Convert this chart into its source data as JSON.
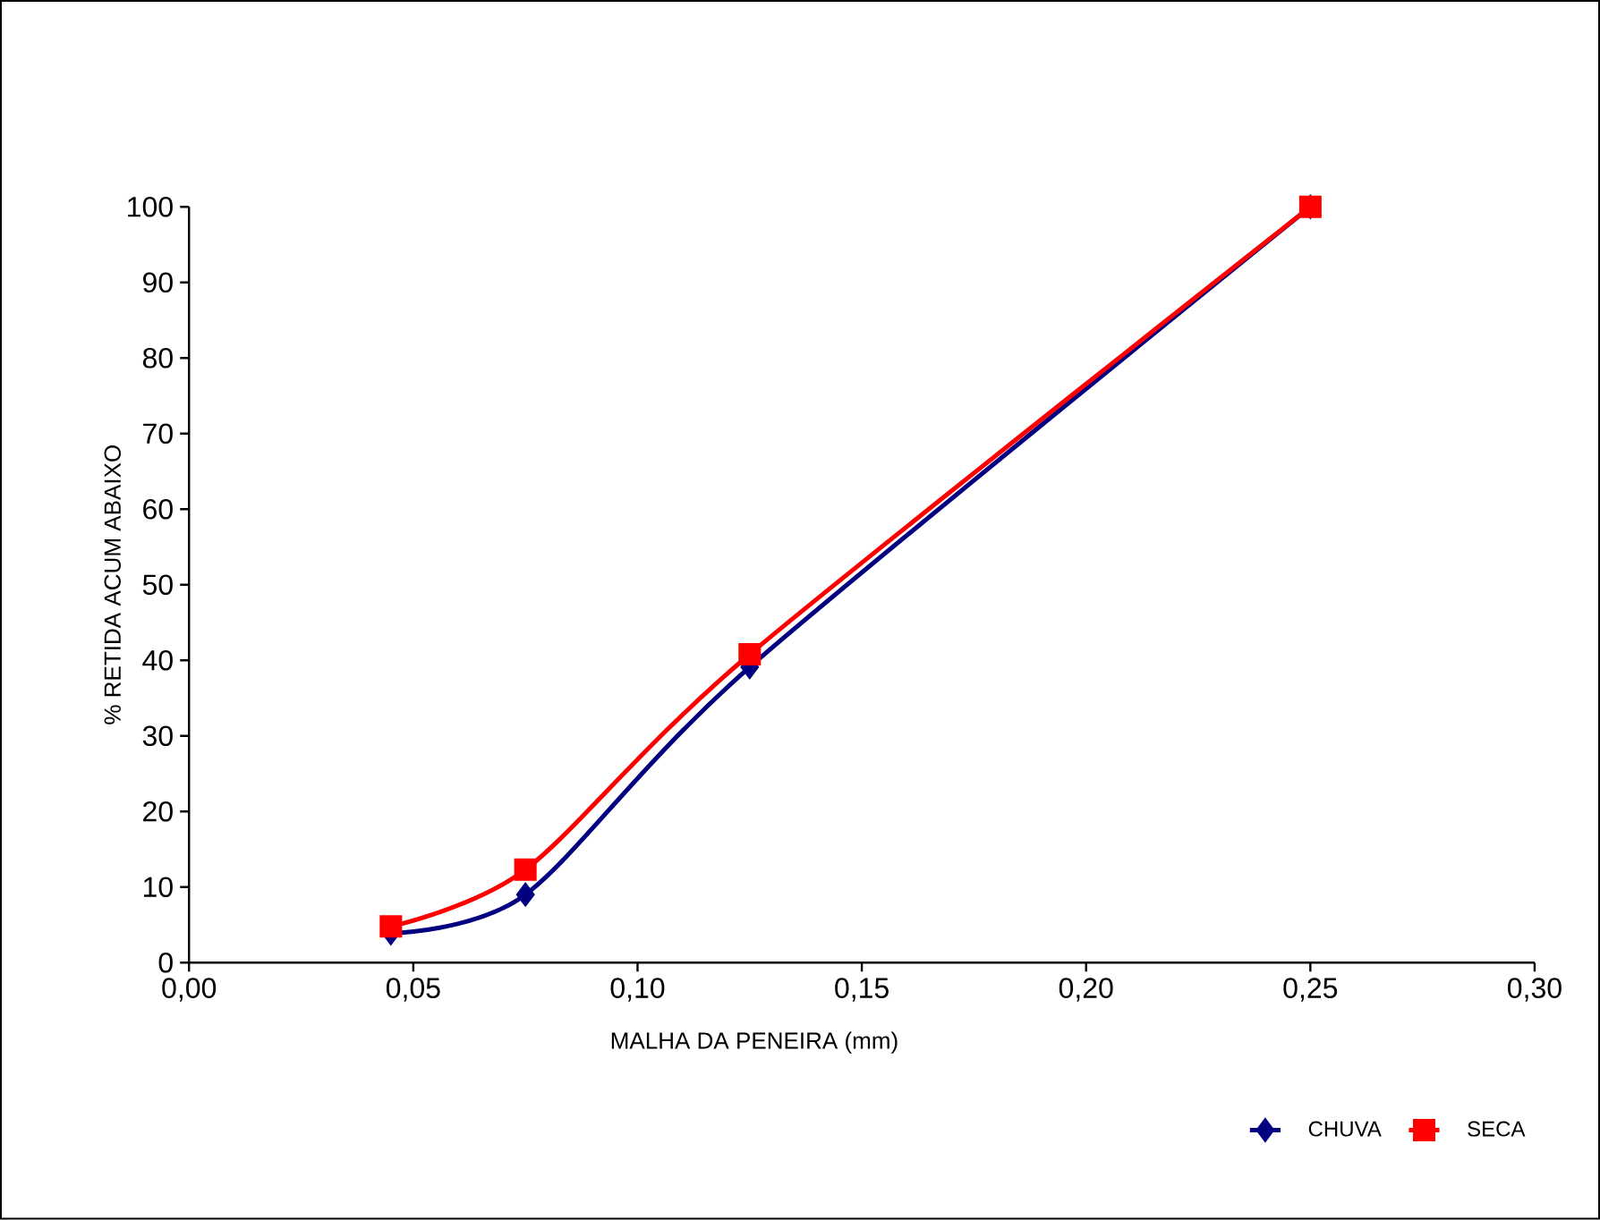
{
  "chart_data": {
    "type": "line",
    "xlabel": "MALHA DA PENEIRA (mm)",
    "ylabel": "% RETIDA ACUM ABAIXO",
    "x": [
      0.045,
      0.075,
      0.125,
      0.25
    ],
    "series": [
      {
        "name": "CHUVA",
        "color": "#000080",
        "marker": "diamond",
        "values": [
          3.9,
          9.0,
          39.1,
          100
        ]
      },
      {
        "name": "SECA",
        "color": "#ff0000",
        "marker": "square",
        "values": [
          4.8,
          12.3,
          40.8,
          100
        ]
      }
    ],
    "xlim": [
      0,
      0.3
    ],
    "xticks": [
      {
        "value": 0,
        "label": "0,00"
      },
      {
        "value": 0.05,
        "label": "0,05"
      },
      {
        "value": 0.1,
        "label": "0,10"
      },
      {
        "value": 0.15,
        "label": "0,15"
      },
      {
        "value": 0.2,
        "label": "0,20"
      },
      {
        "value": 0.25,
        "label": "0,25"
      },
      {
        "value": 0.3,
        "label": "0,30"
      }
    ],
    "ylim": [
      0,
      100
    ],
    "yticks": [
      0,
      10,
      20,
      30,
      40,
      50,
      60,
      70,
      80,
      90,
      100
    ],
    "grid": false,
    "legend": "bottom right",
    "line_style": "solid"
  }
}
